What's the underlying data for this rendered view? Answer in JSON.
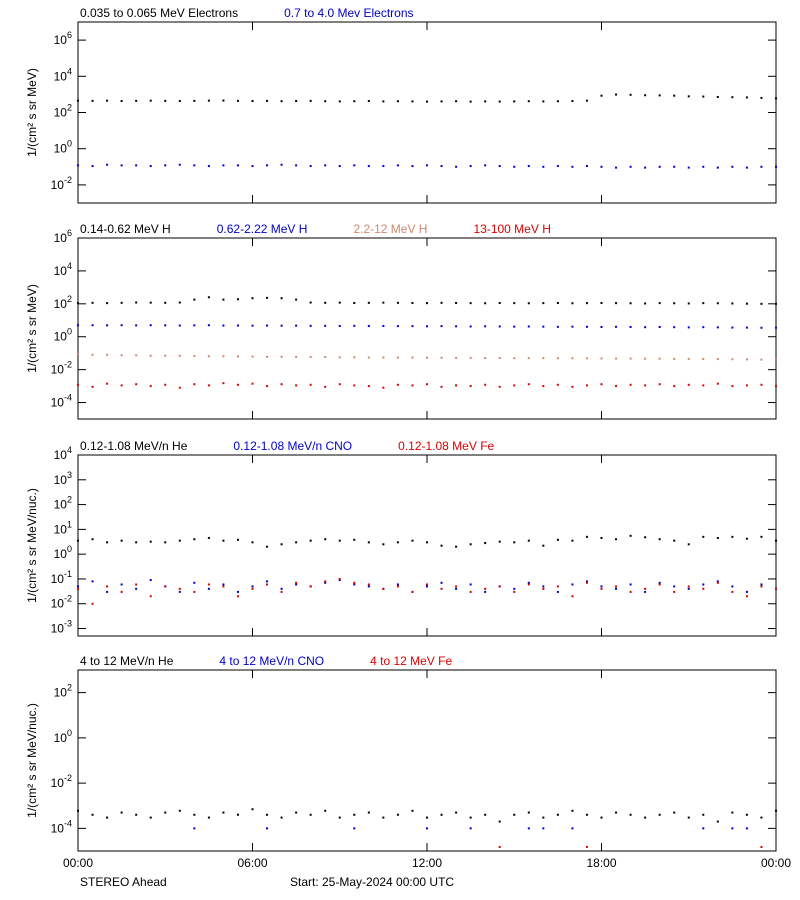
{
  "chart_data": [
    {
      "type": "scatter",
      "log_y": true,
      "ylabel": "1/(cm² s sr MeV)",
      "ylim": [
        0.001,
        10000000
      ],
      "yticks": [
        {
          "value": 0.01,
          "label": "10",
          "exp": "-2"
        },
        {
          "value": 1,
          "label": "10",
          "exp": "0"
        },
        {
          "value": 100,
          "label": "10",
          "exp": "2"
        },
        {
          "value": 10000,
          "label": "10",
          "exp": "4"
        },
        {
          "value": 1000000,
          "label": "10",
          "exp": "6"
        }
      ],
      "x": [
        0,
        0.5,
        1,
        1.5,
        2,
        2.5,
        3,
        3.5,
        4,
        4.5,
        5,
        5.5,
        6,
        6.5,
        7,
        7.5,
        8,
        8.5,
        9,
        9.5,
        10,
        10.5,
        11,
        11.5,
        12,
        12.5,
        13,
        13.5,
        14,
        14.5,
        15,
        15.5,
        16,
        16.5,
        17,
        17.5,
        18,
        18.5,
        19,
        19.5,
        20,
        20.5,
        21,
        21.5,
        22,
        22.5,
        23,
        23.5,
        24
      ],
      "series": [
        {
          "name": "0.035 to 0.065 MeV Electrons",
          "color": "#000000",
          "values": [
            450,
            440,
            450,
            430,
            440,
            450,
            440,
            430,
            440,
            450,
            460,
            440,
            430,
            440,
            420,
            430,
            440,
            420,
            410,
            420,
            430,
            410,
            420,
            410,
            400,
            410,
            420,
            400,
            410,
            400,
            410,
            420,
            410,
            420,
            430,
            450,
            850,
            980,
            950,
            900,
            880,
            850,
            780,
            760,
            720,
            700,
            680,
            640,
            600
          ]
        },
        {
          "name": "0.7 to 4.0 Mev Electrons",
          "color": "#0000cc",
          "values": [
            0.12,
            0.11,
            0.13,
            0.12,
            0.12,
            0.11,
            0.12,
            0.13,
            0.12,
            0.11,
            0.12,
            0.12,
            0.11,
            0.12,
            0.13,
            0.12,
            0.11,
            0.12,
            0.11,
            0.12,
            0.11,
            0.11,
            0.12,
            0.11,
            0.12,
            0.11,
            0.1,
            0.11,
            0.12,
            0.11,
            0.1,
            0.11,
            0.1,
            0.11,
            0.1,
            0.11,
            0.1,
            0.09,
            0.1,
            0.09,
            0.1,
            0.1,
            0.09,
            0.1,
            0.09,
            0.1,
            0.09,
            0.1,
            0.1
          ]
        }
      ]
    },
    {
      "type": "scatter",
      "log_y": true,
      "ylabel": "1/(cm² s sr MeV)",
      "ylim": [
        1e-05,
        1000000
      ],
      "yticks": [
        {
          "value": 0.0001,
          "label": "10",
          "exp": "-4"
        },
        {
          "value": 0.01,
          "label": "10",
          "exp": "-2"
        },
        {
          "value": 1,
          "label": "10",
          "exp": "0"
        },
        {
          "value": 100,
          "label": "10",
          "exp": "2"
        },
        {
          "value": 10000,
          "label": "10",
          "exp": "4"
        },
        {
          "value": 1000000,
          "label": "10",
          "exp": "6"
        }
      ],
      "x": [
        0,
        0.5,
        1,
        1.5,
        2,
        2.5,
        3,
        3.5,
        4,
        4.5,
        5,
        5.5,
        6,
        6.5,
        7,
        7.5,
        8,
        8.5,
        9,
        9.5,
        10,
        10.5,
        11,
        11.5,
        12,
        12.5,
        13,
        13.5,
        14,
        14.5,
        15,
        15.5,
        16,
        16.5,
        17,
        17.5,
        18,
        18.5,
        19,
        19.5,
        20,
        20.5,
        21,
        21.5,
        22,
        22.5,
        23,
        23.5,
        24
      ],
      "series": [
        {
          "name": "0.14-0.62 MeV H",
          "color": "#000000",
          "values": [
            110,
            115,
            110,
            115,
            120,
            118,
            115,
            120,
            180,
            250,
            180,
            190,
            220,
            230,
            220,
            180,
            120,
            115,
            118,
            112,
            115,
            118,
            115,
            112,
            110,
            115,
            112,
            110,
            108,
            112,
            110,
            108,
            110,
            112,
            108,
            110,
            112,
            110,
            108,
            105,
            110,
            108,
            105,
            110,
            108,
            105,
            102,
            100,
            100
          ]
        },
        {
          "name": "0.62-2.22 MeV H",
          "color": "#0000cc",
          "values": [
            5.0,
            5.0,
            4.9,
            5.0,
            4.9,
            5.0,
            4.9,
            4.8,
            4.9,
            5.0,
            4.8,
            4.8,
            4.7,
            4.8,
            4.7,
            4.7,
            4.6,
            4.6,
            4.5,
            4.6,
            4.5,
            4.5,
            4.4,
            4.4,
            4.3,
            4.4,
            4.3,
            4.2,
            4.3,
            4.2,
            4.1,
            4.2,
            4.1,
            4.0,
            4.1,
            4.0,
            3.9,
            4.0,
            3.9,
            3.8,
            3.9,
            3.8,
            3.7,
            3.8,
            3.7,
            3.6,
            3.6,
            3.5,
            3.5
          ]
        },
        {
          "name": "2.2-12 MeV H",
          "color": "#d08870",
          "values": [
            0.085,
            0.08,
            0.08,
            0.075,
            0.075,
            0.07,
            0.07,
            0.07,
            0.068,
            0.065,
            0.065,
            0.063,
            0.062,
            0.06,
            0.06,
            0.06,
            0.058,
            0.058,
            0.056,
            0.056,
            0.055,
            0.055,
            0.054,
            0.054,
            0.053,
            0.053,
            0.052,
            0.052,
            0.051,
            0.051,
            0.05,
            0.05,
            0.05,
            0.049,
            0.049,
            0.048,
            0.048,
            0.047,
            0.047,
            0.046,
            0.046,
            0.045,
            0.045,
            0.044,
            0.044,
            0.043,
            0.042,
            0.041,
            0.04
          ]
        },
        {
          "name": "13-100 MeV H",
          "color": "#dd0000",
          "values": [
            0.0012,
            0.0009,
            0.0014,
            0.0011,
            0.0013,
            0.001,
            0.0012,
            0.0008,
            0.0013,
            0.0011,
            0.0015,
            0.0012,
            0.0014,
            0.001,
            0.0013,
            0.0011,
            0.0012,
            0.0009,
            0.0013,
            0.0011,
            0.001,
            0.0008,
            0.0012,
            0.0011,
            0.0013,
            0.0009,
            0.0011,
            0.001,
            0.0012,
            0.0009,
            0.0011,
            0.0013,
            0.001,
            0.0012,
            0.0009,
            0.0011,
            0.0013,
            0.001,
            0.0012,
            0.0011,
            0.0013,
            0.001,
            0.0012,
            0.0011,
            0.0014,
            0.001,
            0.0011,
            0.0012,
            0.001
          ]
        }
      ]
    },
    {
      "type": "scatter",
      "log_y": true,
      "ylabel": "1/(cm² s sr MeV/nuc.)",
      "ylim": [
        0.0005,
        10000
      ],
      "yticks": [
        {
          "value": 0.001,
          "label": "10",
          "exp": "-3"
        },
        {
          "value": 0.01,
          "label": "10",
          "exp": "-2"
        },
        {
          "value": 0.1,
          "label": "10",
          "exp": "-1"
        },
        {
          "value": 1,
          "label": "10",
          "exp": "0"
        },
        {
          "value": 10,
          "label": "10",
          "exp": "1"
        },
        {
          "value": 100,
          "label": "10",
          "exp": "2"
        },
        {
          "value": 1000,
          "label": "10",
          "exp": "3"
        },
        {
          "value": 10000,
          "label": "10",
          "exp": "4"
        }
      ],
      "x": [
        0,
        0.5,
        1,
        1.5,
        2,
        2.5,
        3,
        3.5,
        4,
        4.5,
        5,
        5.5,
        6,
        6.5,
        7,
        7.5,
        8,
        8.5,
        9,
        9.5,
        10,
        10.5,
        11,
        11.5,
        12,
        12.5,
        13,
        13.5,
        14,
        14.5,
        15,
        15.5,
        16,
        16.5,
        17,
        17.5,
        18,
        18.5,
        19,
        19.5,
        20,
        20.5,
        21,
        21.5,
        22,
        22.5,
        23,
        23.5,
        24
      ],
      "series": [
        {
          "name": "0.12-1.08 MeV/n He",
          "color": "#000000",
          "values": [
            3.5,
            4,
            3,
            3.5,
            3,
            3.2,
            3,
            3.5,
            4,
            4.5,
            3.5,
            3.8,
            3,
            2,
            2.5,
            3,
            3.5,
            4,
            3.5,
            3.8,
            3,
            2.5,
            3,
            3.5,
            3,
            2.2,
            2,
            2.5,
            2.8,
            3.2,
            3,
            3.5,
            2.2,
            3.8,
            3.5,
            5,
            4.5,
            4,
            5.5,
            4.8,
            4,
            3.5,
            2.5,
            5,
            4.5,
            5,
            4.2,
            5,
            3.5
          ]
        },
        {
          "name": "0.12-1.08 MeV/n CNO",
          "color": "#0000cc",
          "values": [
            0.05,
            0.08,
            0.03,
            0.06,
            0.04,
            0.09,
            0.05,
            0.03,
            0.07,
            0.04,
            0.06,
            0.03,
            0.05,
            0.08,
            0.04,
            0.06,
            0.05,
            0.07,
            0.09,
            0.06,
            0.05,
            0.04,
            0.06,
            0.03,
            0.05,
            0.07,
            0.04,
            0.06,
            0.03,
            0.05,
            0.04,
            0.07,
            0.05,
            0.03,
            0.06,
            0.08,
            0.05,
            0.04,
            0.06,
            0.03,
            0.07,
            0.05,
            0.04,
            0.06,
            0.08,
            0.05,
            0.03,
            0.06,
            0.04
          ]
        },
        {
          "name": "0.12-1.08 MeV Fe",
          "color": "#dd0000",
          "values": [
            0.04,
            0.01,
            0.05,
            0.03,
            0.06,
            0.02,
            0.05,
            0.04,
            0.03,
            0.06,
            0.05,
            0.02,
            0.04,
            0.06,
            0.03,
            0.07,
            0.05,
            0.08,
            0.1,
            0.07,
            0.06,
            0.04,
            0.05,
            0.03,
            0.06,
            0.04,
            0.05,
            0.03,
            0.04,
            0.05,
            0.03,
            0.06,
            0.04,
            0.05,
            0.02,
            0.07,
            0.04,
            0.05,
            0.03,
            0.04,
            0.06,
            0.03,
            0.05,
            0.04,
            0.07,
            0.03,
            0.02,
            0.05,
            0.04
          ]
        }
      ]
    },
    {
      "type": "scatter",
      "log_y": true,
      "ylabel": "1/(cm² s sr MeV/nuc.)",
      "ylim": [
        1e-05,
        1000
      ],
      "yticks": [
        {
          "value": 0.0001,
          "label": "10",
          "exp": "-4"
        },
        {
          "value": 0.01,
          "label": "10",
          "exp": "-2"
        },
        {
          "value": 1,
          "label": "10",
          "exp": "0"
        },
        {
          "value": 100,
          "label": "10",
          "exp": "2"
        }
      ],
      "xlim": [
        0,
        24
      ],
      "xticks": [
        {
          "value": 0,
          "label": "00:00"
        },
        {
          "value": 6,
          "label": "06:00"
        },
        {
          "value": 12,
          "label": "12:00"
        },
        {
          "value": 18,
          "label": "18:00"
        },
        {
          "value": 24,
          "label": "00:00"
        }
      ],
      "x": [
        0,
        0.5,
        1,
        1.5,
        2,
        2.5,
        3,
        3.5,
        4,
        4.5,
        5,
        5.5,
        6,
        6.5,
        7,
        7.5,
        8,
        8.5,
        9,
        9.5,
        10,
        10.5,
        11,
        11.5,
        12,
        12.5,
        13,
        13.5,
        14,
        14.5,
        15,
        15.5,
        16,
        16.5,
        17,
        17.5,
        18,
        18.5,
        19,
        19.5,
        20,
        20.5,
        21,
        21.5,
        22,
        22.5,
        23,
        23.5,
        24
      ],
      "series": [
        {
          "name": "4 to 12 MeV/n He",
          "color": "#000000",
          "values": [
            0.0006,
            0.0004,
            0.0003,
            0.0005,
            0.0004,
            0.0003,
            0.0005,
            0.0006,
            0.0004,
            0.0003,
            0.0005,
            0.0004,
            0.0007,
            0.0004,
            0.0003,
            0.0005,
            0.0004,
            0.0006,
            0.0003,
            0.0004,
            0.0005,
            0.0003,
            0.0004,
            0.0006,
            0.0003,
            0.0004,
            0.0005,
            0.0003,
            0.0004,
            0.0002,
            0.0004,
            0.0005,
            0.0003,
            0.0004,
            0.0006,
            0.0004,
            0.0003,
            0.0005,
            0.0004,
            0.0003,
            0.0004,
            0.0005,
            0.0003,
            0.0004,
            0.0002,
            0.0005,
            0.0004,
            0.0003,
            0.0006
          ]
        },
        {
          "name": "4 to 12 MeV/n CNO",
          "color": "#0000cc",
          "values": [
            null,
            null,
            null,
            null,
            null,
            null,
            null,
            null,
            0.0001,
            null,
            null,
            null,
            null,
            0.0001,
            null,
            null,
            null,
            null,
            null,
            0.0001,
            null,
            null,
            null,
            null,
            0.0001,
            null,
            null,
            0.0001,
            null,
            null,
            null,
            0.0001,
            0.0001,
            null,
            0.0001,
            null,
            null,
            null,
            null,
            null,
            null,
            null,
            null,
            0.0001,
            null,
            0.0001,
            0.0001,
            null,
            null
          ]
        },
        {
          "name": "4 to 12 MeV Fe",
          "color": "#dd0000",
          "values": [
            null,
            null,
            null,
            null,
            null,
            null,
            null,
            null,
            null,
            null,
            null,
            null,
            null,
            null,
            null,
            null,
            null,
            null,
            null,
            null,
            null,
            null,
            null,
            null,
            null,
            null,
            null,
            null,
            null,
            1.5e-05,
            null,
            null,
            null,
            null,
            null,
            1.5e-05,
            null,
            null,
            null,
            null,
            null,
            null,
            null,
            null,
            null,
            null,
            null,
            1.5e-05,
            null
          ]
        }
      ]
    }
  ],
  "footer": {
    "left": "STEREO Ahead",
    "center": "Start: 25-May-2024 00:00 UTC"
  }
}
